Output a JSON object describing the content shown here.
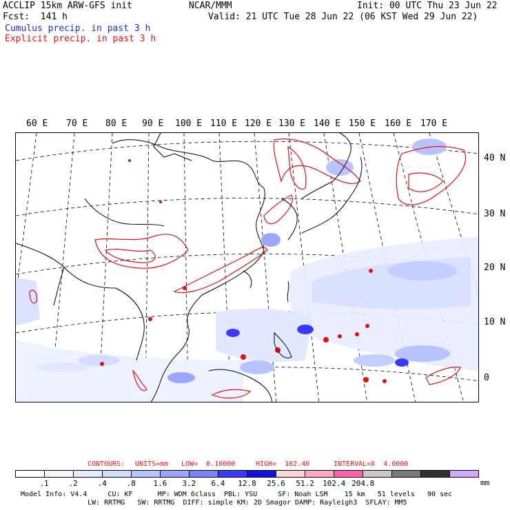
{
  "header": {
    "model_title": "ACCLIP 15km ARW-GFS init",
    "forecast": "Fcst:  141 h",
    "center": "NCAR/MMM",
    "init": "Init: 00 UTC Thu 23 Jun 22",
    "valid": "Valid: 21 UTC Tue 28 Jun 22 (06 KST Wed 29 Jun 22)",
    "legend_cumulus": "Cumulus precip. in past 3 h",
    "legend_explicit": "Explicit precip. in past 3 h",
    "colors": {
      "cumulus": "#1a2bd0",
      "explicit": "#e01010"
    }
  },
  "map": {
    "lon_labels": [
      "60 E",
      "70 E",
      "80 E",
      "90 E",
      "100 E",
      "110 E",
      "120 E",
      "130 E",
      "140 E",
      "150 E",
      "160 E",
      "170 E"
    ],
    "lat_labels": [
      "40 N",
      "30 N",
      "20 N",
      "10 N",
      "0"
    ]
  },
  "contours": {
    "contours": "CONTOURS:",
    "units": "UNITS=mm",
    "low": "LOW=  0.10000",
    "high": "HIGH=  102.40",
    "interval": "INTERVAL=X  4.0000"
  },
  "colorbar": {
    "colors": [
      "#ffffff",
      "#f4f6ff",
      "#e6ebff",
      "#d3dcff",
      "#b8c4ff",
      "#9aa6ff",
      "#7a82ff",
      "#3a3aff",
      "#1010e0",
      "#ffd6d6",
      "#ffa8c8",
      "#ff60b0",
      "#c8c8c8",
      "#7a7a7a",
      "#303030",
      "#d8a8ff"
    ],
    "ticks": [
      ".1",
      ".2",
      ".4",
      ".8",
      "1.6",
      "3.2",
      "6.4",
      "12.8",
      "25.6",
      "51.2",
      "102.4",
      "204.8"
    ],
    "units": "mm"
  },
  "footer": {
    "line1": "Model Info: V4.4     CU: KF      MP: WDM 6class  PBL: YSU     SF: Noah LSM    15 km   51 levels   90 sec",
    "line2": "LW: RRTMG   SW: RRTMG  DIFF: simple KM: 2D Smagor DAMP: Rayleigh3  SFLAY: MM5"
  }
}
